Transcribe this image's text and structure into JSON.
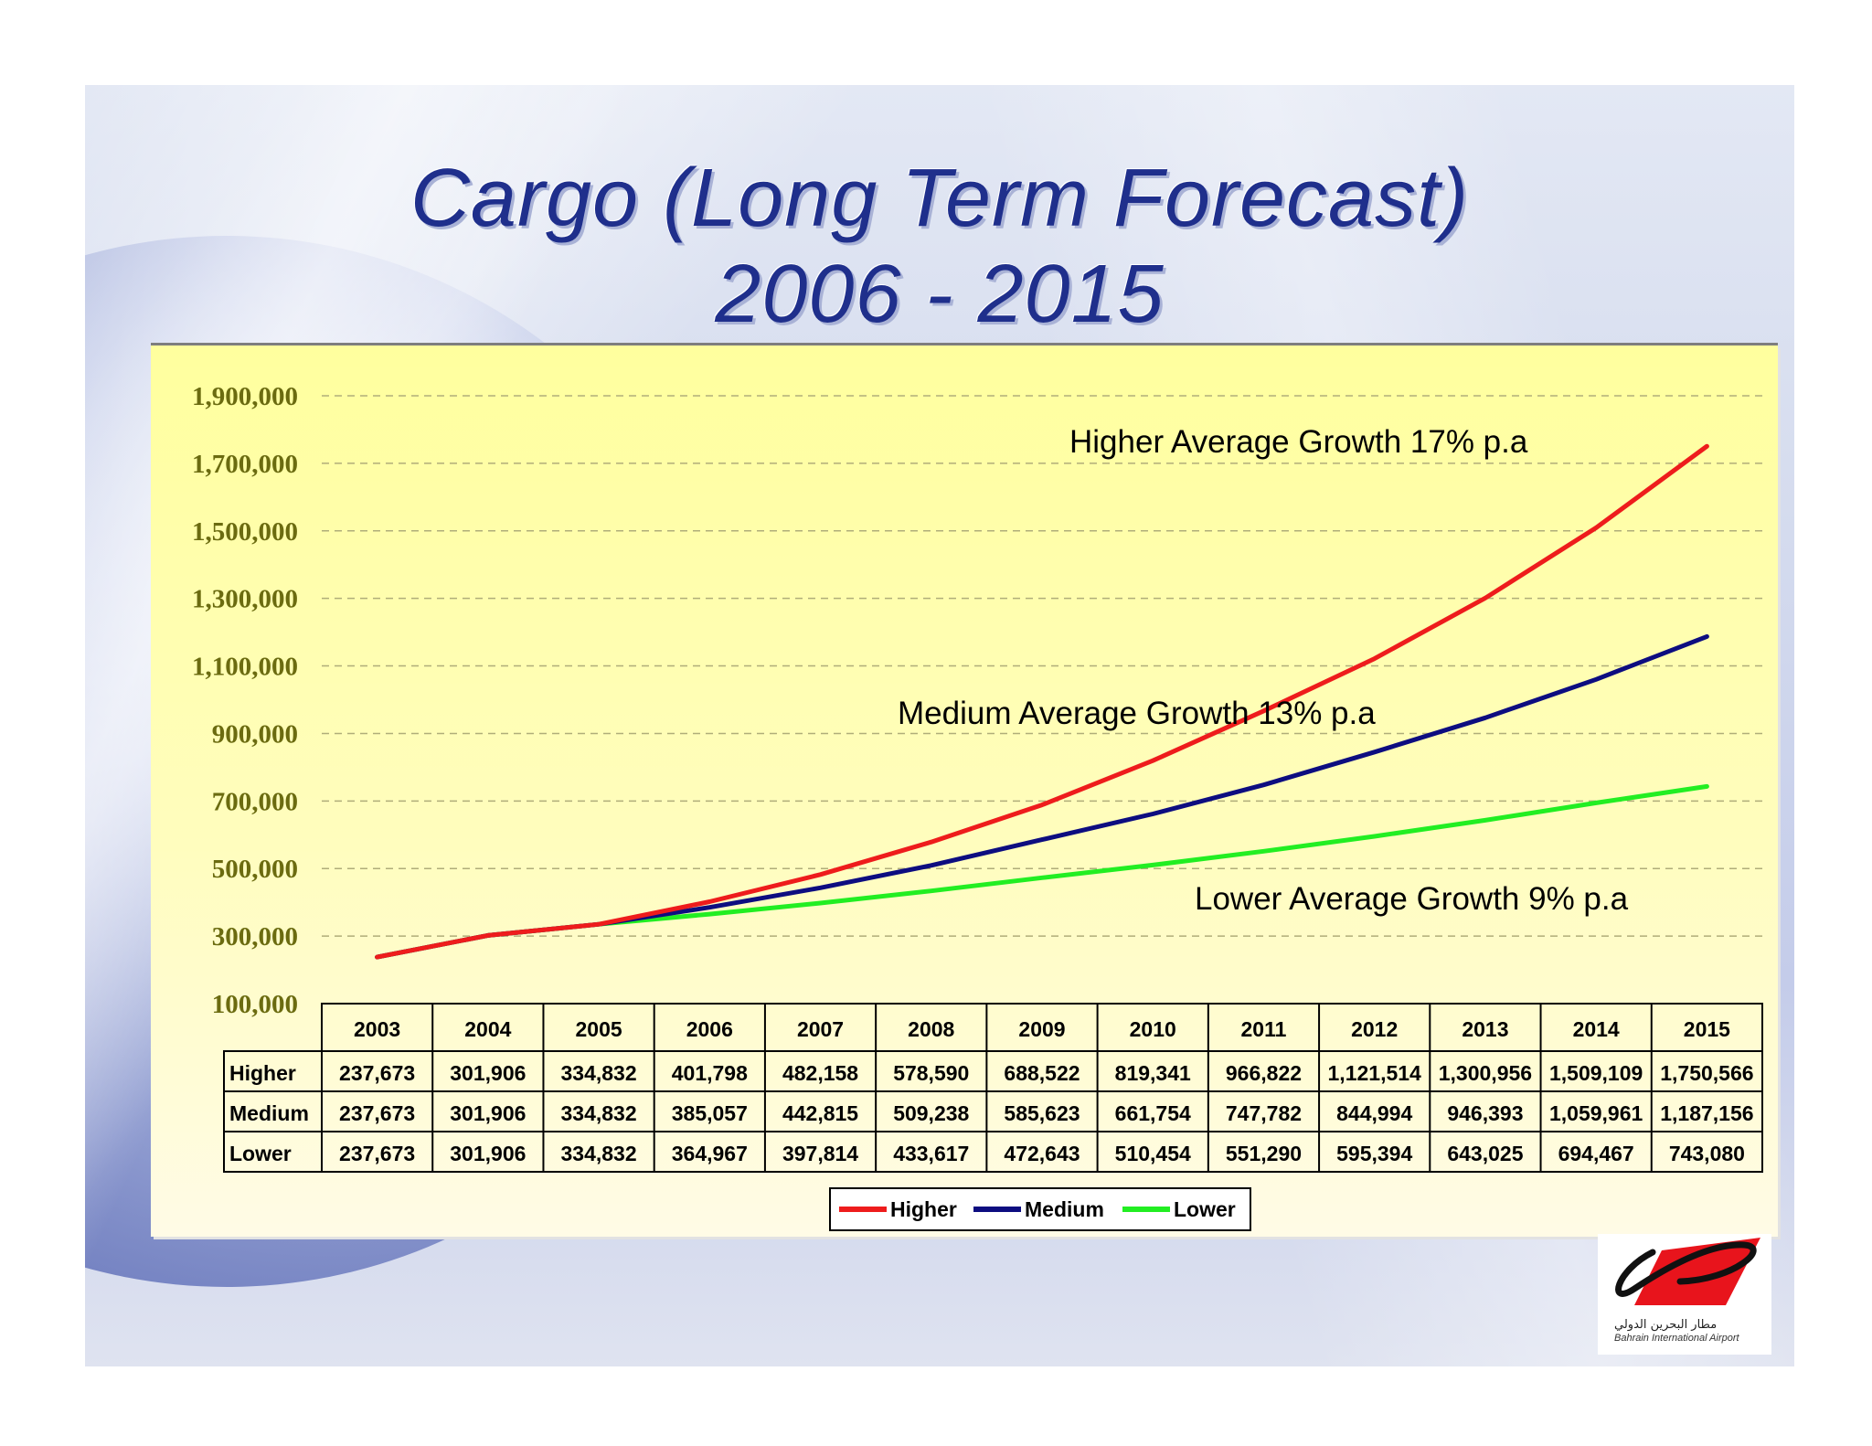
{
  "slide": {
    "title_line1": "Cargo (Long Term Forecast)",
    "title_line2": "2006 - 2015"
  },
  "logo": {
    "arabic_text": "مطار البحرين الدولي",
    "english_text": "Bahrain International Airport",
    "brand_color": "#e8141c"
  },
  "chart_data": {
    "type": "line",
    "title": "Cargo (Long Term Forecast) 2006 - 2015",
    "xlabel": "",
    "ylabel": "",
    "x": [
      "2003",
      "2004",
      "2005",
      "2006",
      "2007",
      "2008",
      "2009",
      "2010",
      "2011",
      "2012",
      "2013",
      "2014",
      "2015"
    ],
    "y_ticks": [
      "1,900,000",
      "1,700,000",
      "1,500,000",
      "1,300,000",
      "1,100,000",
      "900,000",
      "700,000",
      "500,000",
      "300,000",
      "100,000"
    ],
    "ylim": [
      100000,
      1900000
    ],
    "grid": true,
    "legend_position": "bottom",
    "series": [
      {
        "name": "Higher",
        "color": "#ee1c1c",
        "values": [
          237673,
          301906,
          334832,
          401798,
          482158,
          578590,
          688522,
          819341,
          966822,
          1121514,
          1300956,
          1509109,
          1750566
        ],
        "labels": [
          "237,673",
          "301,906",
          "334,832",
          "401,798",
          "482,158",
          "578,590",
          "688,522",
          "819,341",
          "966,822",
          "1,121,514",
          "1,300,956",
          "1,509,109",
          "1,750,566"
        ]
      },
      {
        "name": "Medium",
        "color": "#0d0d80",
        "values": [
          237673,
          301906,
          334832,
          385057,
          442815,
          509238,
          585623,
          661754,
          747782,
          844994,
          946393,
          1059961,
          1187156
        ],
        "labels": [
          "237,673",
          "301,906",
          "334,832",
          "385,057",
          "442,815",
          "509,238",
          "585,623",
          "661,754",
          "747,782",
          "844,994",
          "946,393",
          "1,059,961",
          "1,187,156"
        ]
      },
      {
        "name": "Lower",
        "color": "#22ee22",
        "values": [
          237673,
          301906,
          334832,
          364967,
          397814,
          433617,
          472643,
          510454,
          551290,
          595394,
          643025,
          694467,
          743080
        ],
        "labels": [
          "237,673",
          "301,906",
          "334,832",
          "364,967",
          "397,814",
          "433,617",
          "472,643",
          "510,454",
          "551,290",
          "595,394",
          "643,025",
          "694,467",
          "743,080"
        ]
      }
    ],
    "annotations": [
      {
        "text": "Higher Average Growth 17% p.a",
        "series": "Higher"
      },
      {
        "text": "Medium Average Growth 13% p.a",
        "series": "Medium"
      },
      {
        "text": "Lower Average Growth 9% p.a",
        "series": "Lower"
      }
    ]
  }
}
